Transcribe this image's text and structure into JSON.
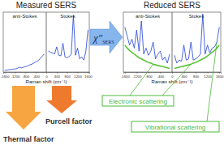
{
  "chart_data": [
    {
      "type": "line",
      "title": "Measured SERS",
      "x_label": "Raman shift (cm⁻¹)",
      "x": [
        -1600,
        -1520,
        -1440,
        -1360,
        -1280,
        -1200,
        -1120,
        -1040,
        -960,
        -880,
        -800,
        -720,
        -640,
        -560,
        -480,
        -400,
        -320,
        -240,
        -160,
        -80,
        0,
        80,
        160,
        240,
        320,
        400,
        480,
        560,
        640,
        720,
        800,
        880,
        960,
        1040,
        1120,
        1200,
        1280,
        1360,
        1440,
        1520,
        1600
      ],
      "series": [
        {
          "color": "#1f3fd6",
          "values": [
            3,
            3,
            4,
            4,
            5,
            5,
            6,
            8,
            7,
            8,
            9,
            10,
            12,
            13,
            15,
            17,
            19,
            22,
            26,
            30,
            null,
            35,
            33,
            32,
            30,
            42,
            28,
            27,
            48,
            25,
            24,
            26,
            30,
            95,
            28,
            40,
            22,
            25,
            20,
            35,
            70
          ]
        }
      ],
      "xlim": [
        -1650,
        1650
      ],
      "ylim": [
        0,
        100
      ],
      "xticks": [
        -1600,
        -1200,
        -800,
        -400,
        0,
        400,
        800,
        1200,
        1600
      ],
      "tick_labels": "x",
      "divider": 0,
      "annotations": [
        "anti-Stokes",
        "Stokes"
      ]
    },
    {
      "type": "line",
      "title": "Reduced SERS",
      "x_label": "Raman shift (cm⁻¹)",
      "x": [
        -1600,
        -1520,
        -1440,
        -1360,
        -1280,
        -1200,
        -1120,
        -1040,
        -960,
        -880,
        -800,
        -720,
        -640,
        -560,
        -480,
        -400,
        -320,
        -240,
        -160,
        -80,
        0,
        80,
        160,
        240,
        320,
        400,
        480,
        560,
        640,
        720,
        800,
        880,
        960,
        1040,
        1120,
        1200,
        1280,
        1360,
        1440,
        1520,
        1600
      ],
      "series": [
        {
          "color": "#1f3fd6",
          "values": [
            75,
            60,
            45,
            55,
            40,
            70,
            35,
            85,
            30,
            40,
            28,
            35,
            50,
            22,
            30,
            35,
            20,
            25,
            15,
            30,
            null,
            28,
            15,
            20,
            18,
            45,
            20,
            22,
            50,
            20,
            22,
            25,
            30,
            97,
            30,
            45,
            32,
            40,
            42,
            50,
            75
          ]
        },
        {
          "color": "#5cc43c",
          "values": [
            45,
            40,
            36,
            33,
            30,
            27,
            24,
            22,
            20,
            18,
            16,
            15,
            13,
            12,
            11,
            10,
            9,
            8,
            7,
            6,
            null,
            6,
            7,
            8,
            9,
            10,
            11,
            12,
            13,
            15,
            16,
            18,
            20,
            22,
            24,
            27,
            30,
            33,
            36,
            40,
            45
          ]
        }
      ],
      "xlim": [
        -1650,
        1650
      ],
      "ylim": [
        0,
        100
      ],
      "xticks": [
        -1600,
        -1200,
        -800,
        -400,
        0,
        400,
        800,
        1200,
        1600
      ],
      "tick_labels": "x",
      "divider": 0,
      "annotations": [
        "anti-Stokes",
        "Stokes"
      ]
    }
  ],
  "annotations": [
    {
      "text": "χ″",
      "subscript": "SERS",
      "color": "#86b6ec"
    },
    {
      "text": "Thermal factor",
      "color": "#f7a541"
    },
    {
      "text": "Purcell factor",
      "color": "#ee7a2e"
    },
    {
      "text": "Electronic scattering",
      "color": "#4cb83a"
    },
    {
      "text": "Vibrational scattering",
      "color": "#4cb83a"
    }
  ]
}
